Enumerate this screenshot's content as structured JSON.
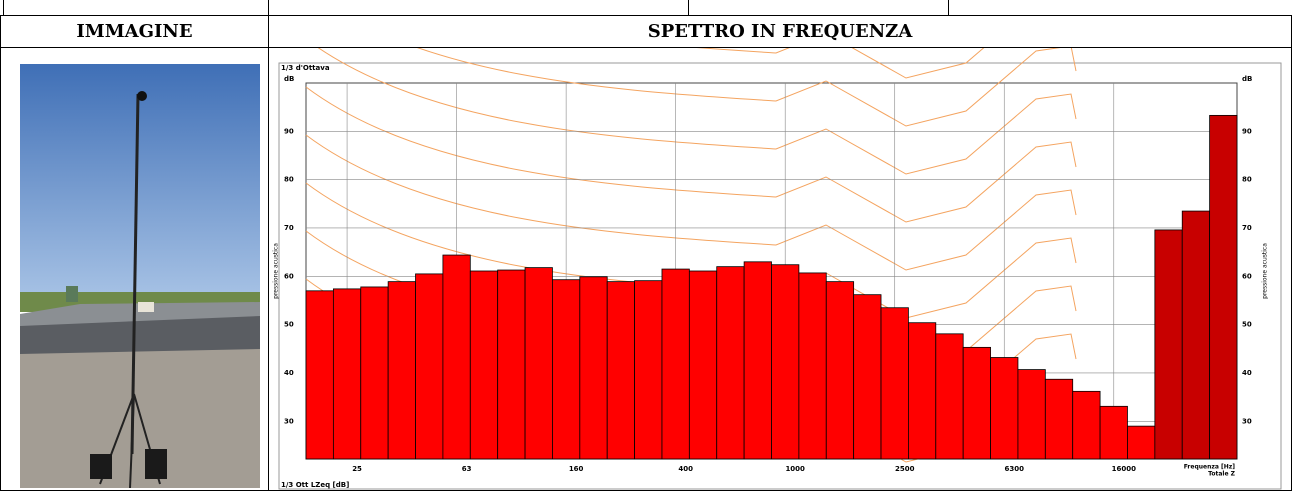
{
  "table": {
    "headers": [
      "IMMAGINE",
      "SPETTRO IN FREQUENZA"
    ]
  },
  "chart_data": {
    "type": "bar",
    "top_left_label": "1/3 d'Ottava",
    "bottom_left_label": "1/3 Ott LZeq [dB]",
    "y_unit": "dB",
    "ylabel": "pressione acustica",
    "xlabel": "Frequenza [Hz]",
    "totals_label": "Totale Z",
    "categories": [
      null,
      "25",
      null,
      null,
      null,
      "63",
      null,
      null,
      null,
      "160",
      null,
      null,
      null,
      "400",
      null,
      null,
      null,
      "1000",
      null,
      null,
      null,
      "2500",
      null,
      null,
      null,
      "6300",
      null,
      null,
      null,
      "16000",
      null
    ],
    "values": [
      57.0,
      57.4,
      57.8,
      58.9,
      60.5,
      64.4,
      61.1,
      61.3,
      61.8,
      59.3,
      59.9,
      58.9,
      59.1,
      61.5,
      61.1,
      62.0,
      63.0,
      62.4,
      60.7,
      58.9,
      56.2,
      53.5,
      50.4,
      48.1,
      45.3,
      43.2,
      40.7,
      38.7,
      36.2,
      33.1,
      29.0
    ],
    "color": "#ff0000",
    "totals": {
      "values": [
        69.6,
        73.5,
        93.3
      ],
      "color": "#c80000"
    },
    "ylim": [
      22.2,
      100
    ],
    "yticks": [
      30,
      40,
      50,
      60,
      70,
      80,
      90
    ],
    "grid": true
  }
}
